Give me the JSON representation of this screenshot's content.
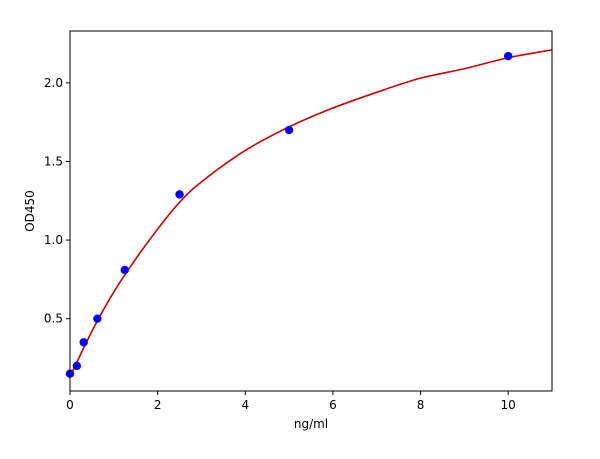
{
  "chart_data": {
    "type": "scatter",
    "xlabel": "ng/ml",
    "ylabel": "OD450",
    "xlim": [
      0,
      11
    ],
    "ylim": [
      0.04,
      2.33
    ],
    "xticks": [
      0,
      2,
      4,
      6,
      8,
      10
    ],
    "xtick_labels": [
      "0",
      "2",
      "4",
      "6",
      "8",
      "10"
    ],
    "yticks": [
      0.5,
      1.0,
      1.5,
      2.0
    ],
    "ytick_labels": [
      "0.5",
      "1.0",
      "1.5",
      "2.0"
    ],
    "grid": false,
    "legend": "none",
    "series": [
      {
        "points": [
          {
            "x": 0,
            "y": 0.15
          },
          {
            "x": 0.156,
            "y": 0.2
          },
          {
            "x": 0.3125,
            "y": 0.35
          },
          {
            "x": 0.625,
            "y": 0.5
          },
          {
            "x": 1.25,
            "y": 0.81
          },
          {
            "x": 2.5,
            "y": 1.29
          },
          {
            "x": 5,
            "y": 1.7
          },
          {
            "x": 10,
            "y": 2.17
          }
        ],
        "color": "#0000ff"
      }
    ],
    "fit_curve": {
      "color": "#cc0000",
      "points": [
        {
          "x": 0,
          "y": 0.13
        },
        {
          "x": 0.5,
          "y": 0.42
        },
        {
          "x": 1,
          "y": 0.67
        },
        {
          "x": 1.5,
          "y": 0.88
        },
        {
          "x": 2,
          "y": 1.07
        },
        {
          "x": 2.5,
          "y": 1.24
        },
        {
          "x": 3,
          "y": 1.37
        },
        {
          "x": 4,
          "y": 1.57
        },
        {
          "x": 5,
          "y": 1.72
        },
        {
          "x": 6,
          "y": 1.84
        },
        {
          "x": 7,
          "y": 1.94
        },
        {
          "x": 8,
          "y": 2.03
        },
        {
          "x": 9,
          "y": 2.09
        },
        {
          "x": 10,
          "y": 2.16
        },
        {
          "x": 11,
          "y": 2.21
        }
      ]
    }
  }
}
